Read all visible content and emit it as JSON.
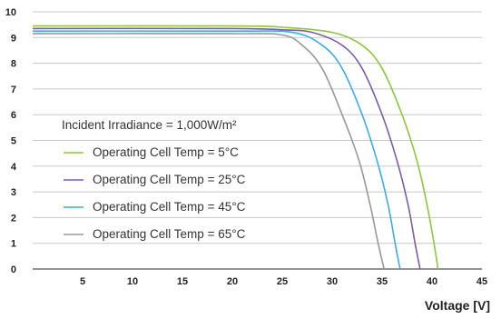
{
  "chart_data": {
    "type": "line",
    "title": "",
    "xlabel": "Voltage [V]",
    "ylabel": "",
    "xlim": [
      0,
      45
    ],
    "ylim": [
      0,
      10
    ],
    "x_ticks": [
      "5",
      "10",
      "15",
      "20",
      "25",
      "30",
      "35",
      "40",
      "45"
    ],
    "y_ticks": [
      "0",
      "1",
      "2",
      "3",
      "4",
      "5",
      "6",
      "7",
      "8",
      "9",
      "10"
    ],
    "grid": "horizontal",
    "legend_title": "Incident Irradiance = 1,000W/m²",
    "legend_position": "center-left",
    "series": [
      {
        "name": "Operating Cell Temp = 5°C",
        "color": "#8dc63f",
        "points": [
          [
            0,
            9.45
          ],
          [
            20,
            9.45
          ],
          [
            25,
            9.4
          ],
          [
            30,
            9.2
          ],
          [
            33,
            8.7
          ],
          [
            35,
            7.8
          ],
          [
            37,
            6.0
          ],
          [
            38.5,
            4.2
          ],
          [
            39.5,
            2.5
          ],
          [
            40.2,
            1.0
          ],
          [
            40.6,
            0.0
          ]
        ]
      },
      {
        "name": "Operating Cell Temp = 25°C",
        "color": "#7b5ea7",
        "points": [
          [
            0,
            9.35
          ],
          [
            20,
            9.35
          ],
          [
            25,
            9.3
          ],
          [
            28,
            9.2
          ],
          [
            31,
            8.7
          ],
          [
            33,
            7.8
          ],
          [
            35,
            6.0
          ],
          [
            36.5,
            4.2
          ],
          [
            37.6,
            2.5
          ],
          [
            38.3,
            1.0
          ],
          [
            38.8,
            0.0
          ]
        ]
      },
      {
        "name": "Operating Cell Temp = 45°C",
        "color": "#3aaee0",
        "points": [
          [
            0,
            9.25
          ],
          [
            20,
            9.25
          ],
          [
            26,
            9.2
          ],
          [
            29,
            8.7
          ],
          [
            31,
            7.8
          ],
          [
            33,
            6.0
          ],
          [
            34.5,
            4.2
          ],
          [
            35.6,
            2.5
          ],
          [
            36.3,
            1.0
          ],
          [
            36.8,
            0.0
          ]
        ]
      },
      {
        "name": "Operating Cell Temp = 65°C",
        "color": "#999999",
        "points": [
          [
            0,
            9.15
          ],
          [
            20,
            9.15
          ],
          [
            25,
            9.1
          ],
          [
            27,
            8.7
          ],
          [
            29,
            7.8
          ],
          [
            31,
            6.0
          ],
          [
            32.7,
            4.2
          ],
          [
            33.8,
            2.5
          ],
          [
            34.6,
            1.0
          ],
          [
            35.2,
            0.0
          ]
        ]
      }
    ]
  }
}
